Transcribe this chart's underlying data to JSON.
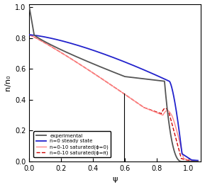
{
  "xlabel": "ψ",
  "ylabel": "n/n₀",
  "xlim": [
    0,
    1.08
  ],
  "ylim": [
    0,
    1.02
  ],
  "xticks": [
    0,
    0.2,
    0.4,
    0.6,
    0.8,
    1
  ],
  "yticks": [
    0,
    0.2,
    0.4,
    0.6,
    0.8,
    1
  ],
  "legend_labels": [
    "experimental",
    "n=0 steady state",
    "n=0-10 saturated(ϕ=0)",
    "n=0-10 saturated(ϕ=π)"
  ],
  "legend_colors": [
    "#555555",
    "#2222cc",
    "#ff8888",
    "#cc0000"
  ],
  "legend_styles": [
    "-",
    "-",
    "-",
    "--"
  ],
  "figsize": [
    2.89,
    2.64
  ],
  "dpi": 100
}
